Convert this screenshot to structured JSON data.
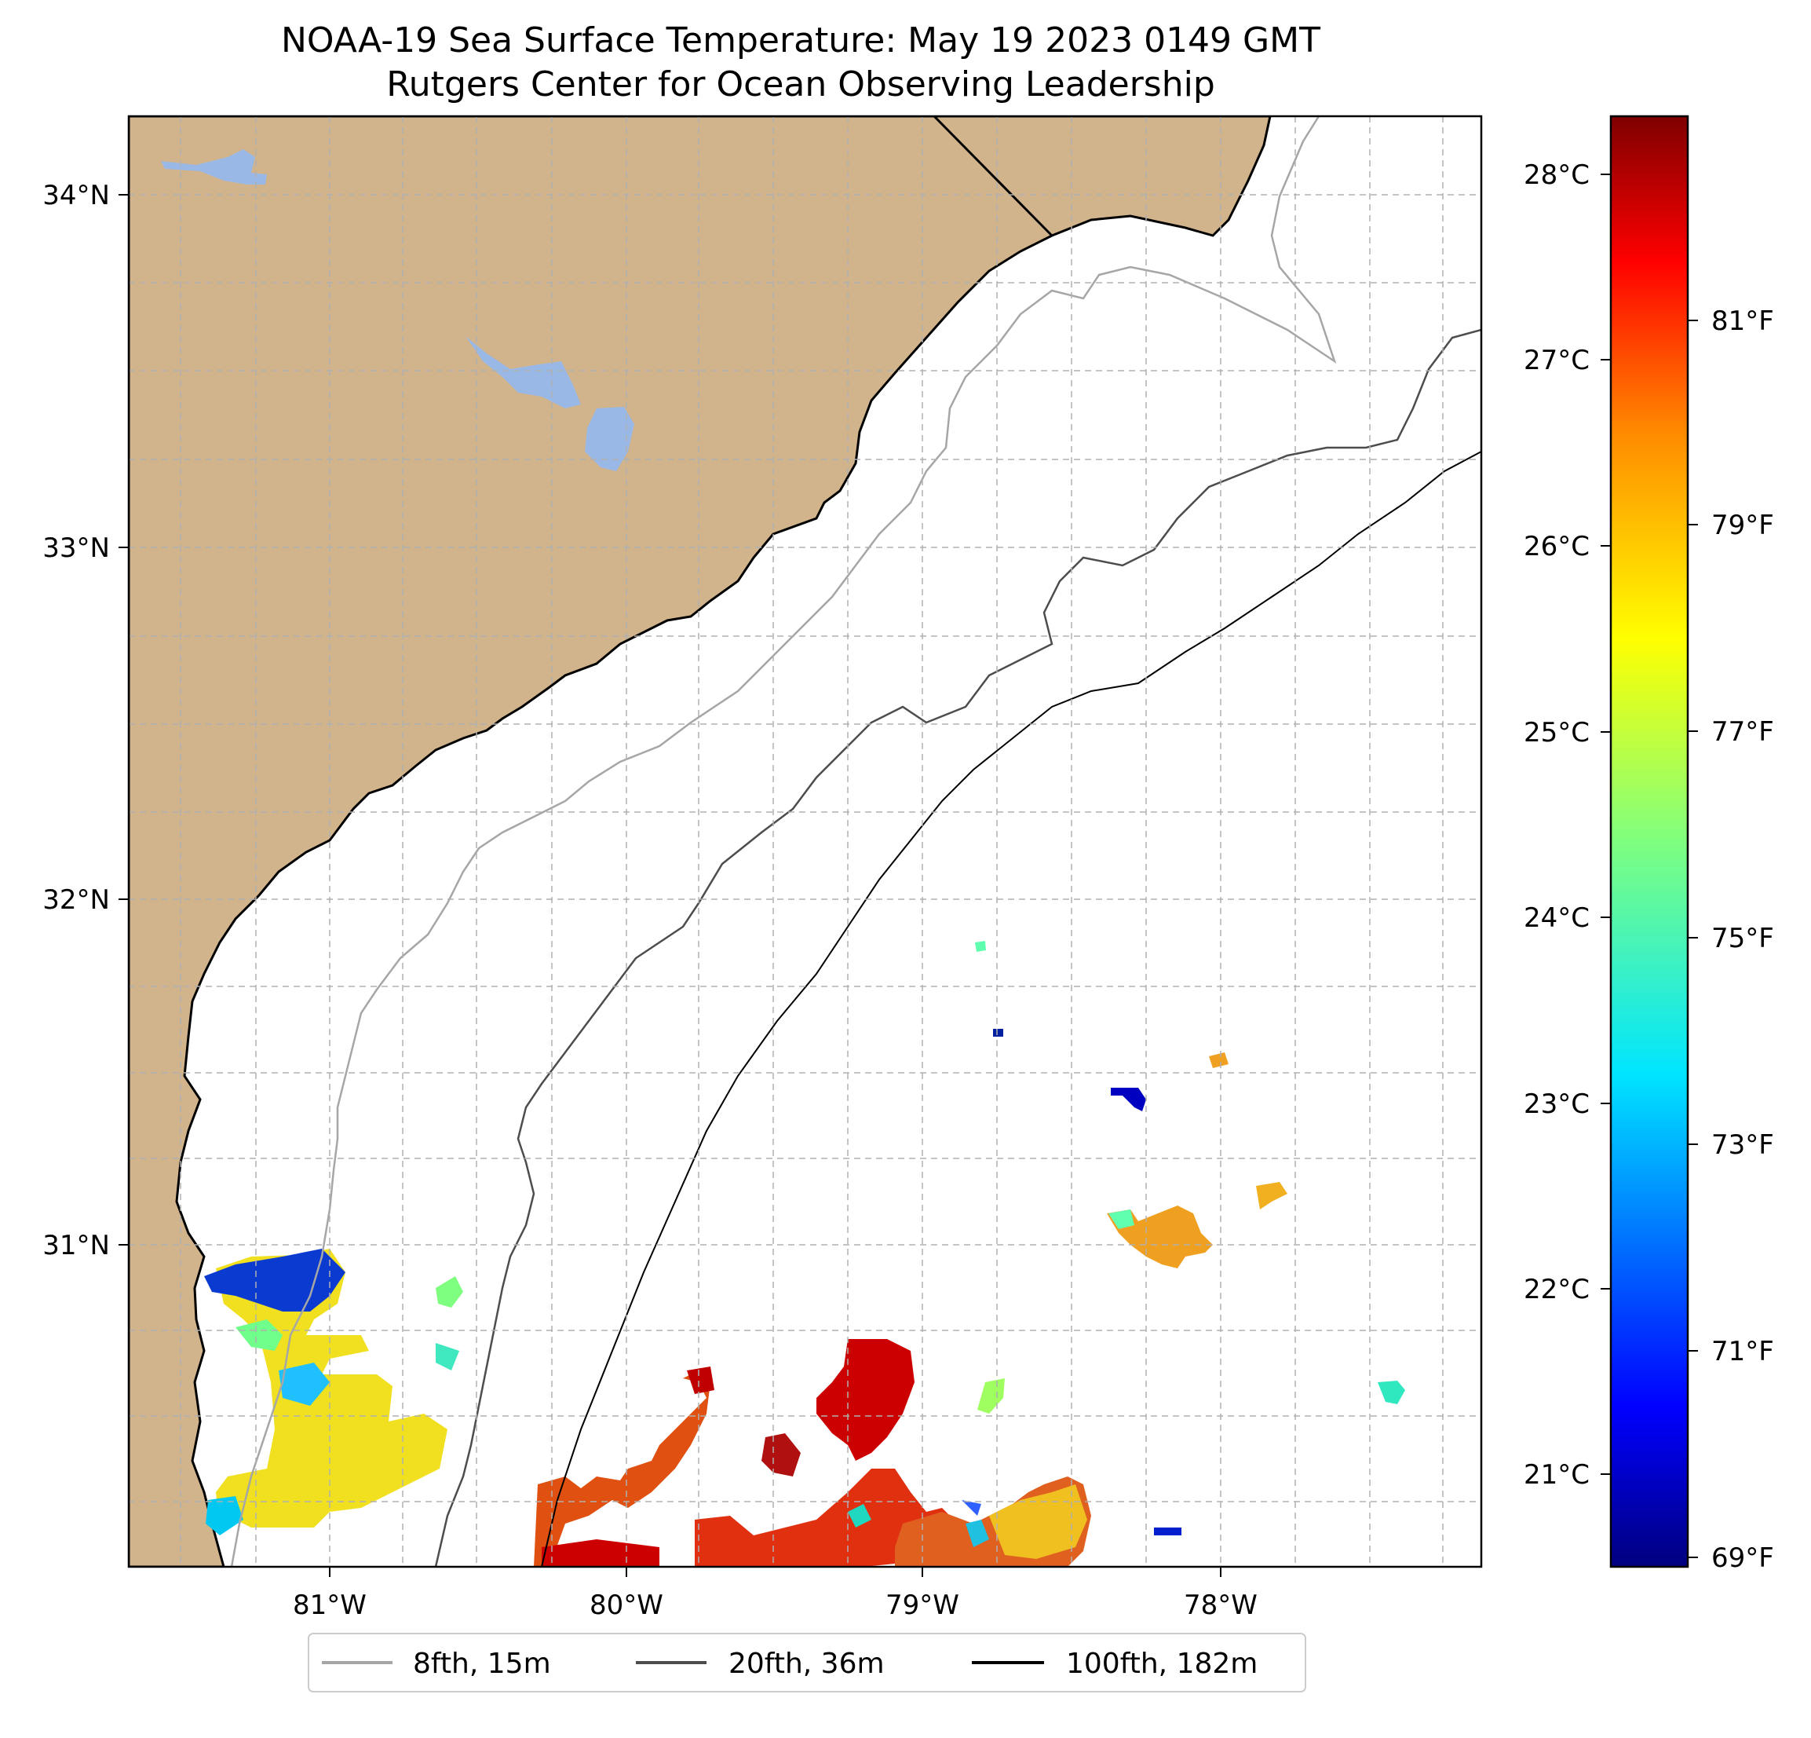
{
  "title_line1": "NOAA-19 Sea Surface Temperature: May 19 2023 0149 GMT",
  "title_line2": "Rutgers Center for Ocean Observing Leadership",
  "map": {
    "lon_labels": [
      "81°W",
      "80°W",
      "79°W",
      "78°W"
    ],
    "lat_labels": [
      "34°N",
      "33°N",
      "32°N",
      "31°N"
    ],
    "land_color": "#d2b48c",
    "lake_color": "#9ab8e6",
    "ocean_color": "#ffffff"
  },
  "colorbar": {
    "celsius_labels": [
      "28°C",
      "27°C",
      "26°C",
      "25°C",
      "24°C",
      "23°C",
      "22°C",
      "21°C"
    ],
    "fahrenheit_labels": [
      "81°F",
      "79°F",
      "77°F",
      "75°F",
      "73°F",
      "71°F",
      "69°F"
    ],
    "colormap": [
      "#00007f",
      "#0000ff",
      "#007fff",
      "#00ffff",
      "#7fff7f",
      "#ffff00",
      "#ff7f00",
      "#ff0000",
      "#7f0000"
    ]
  },
  "legend": {
    "items": [
      {
        "label": "8fth, 15m",
        "color": "#a6a6a6"
      },
      {
        "label": "20fth, 36m",
        "color": "#4d4d4d"
      },
      {
        "label": "100fth, 182m",
        "color": "#000000"
      }
    ]
  }
}
